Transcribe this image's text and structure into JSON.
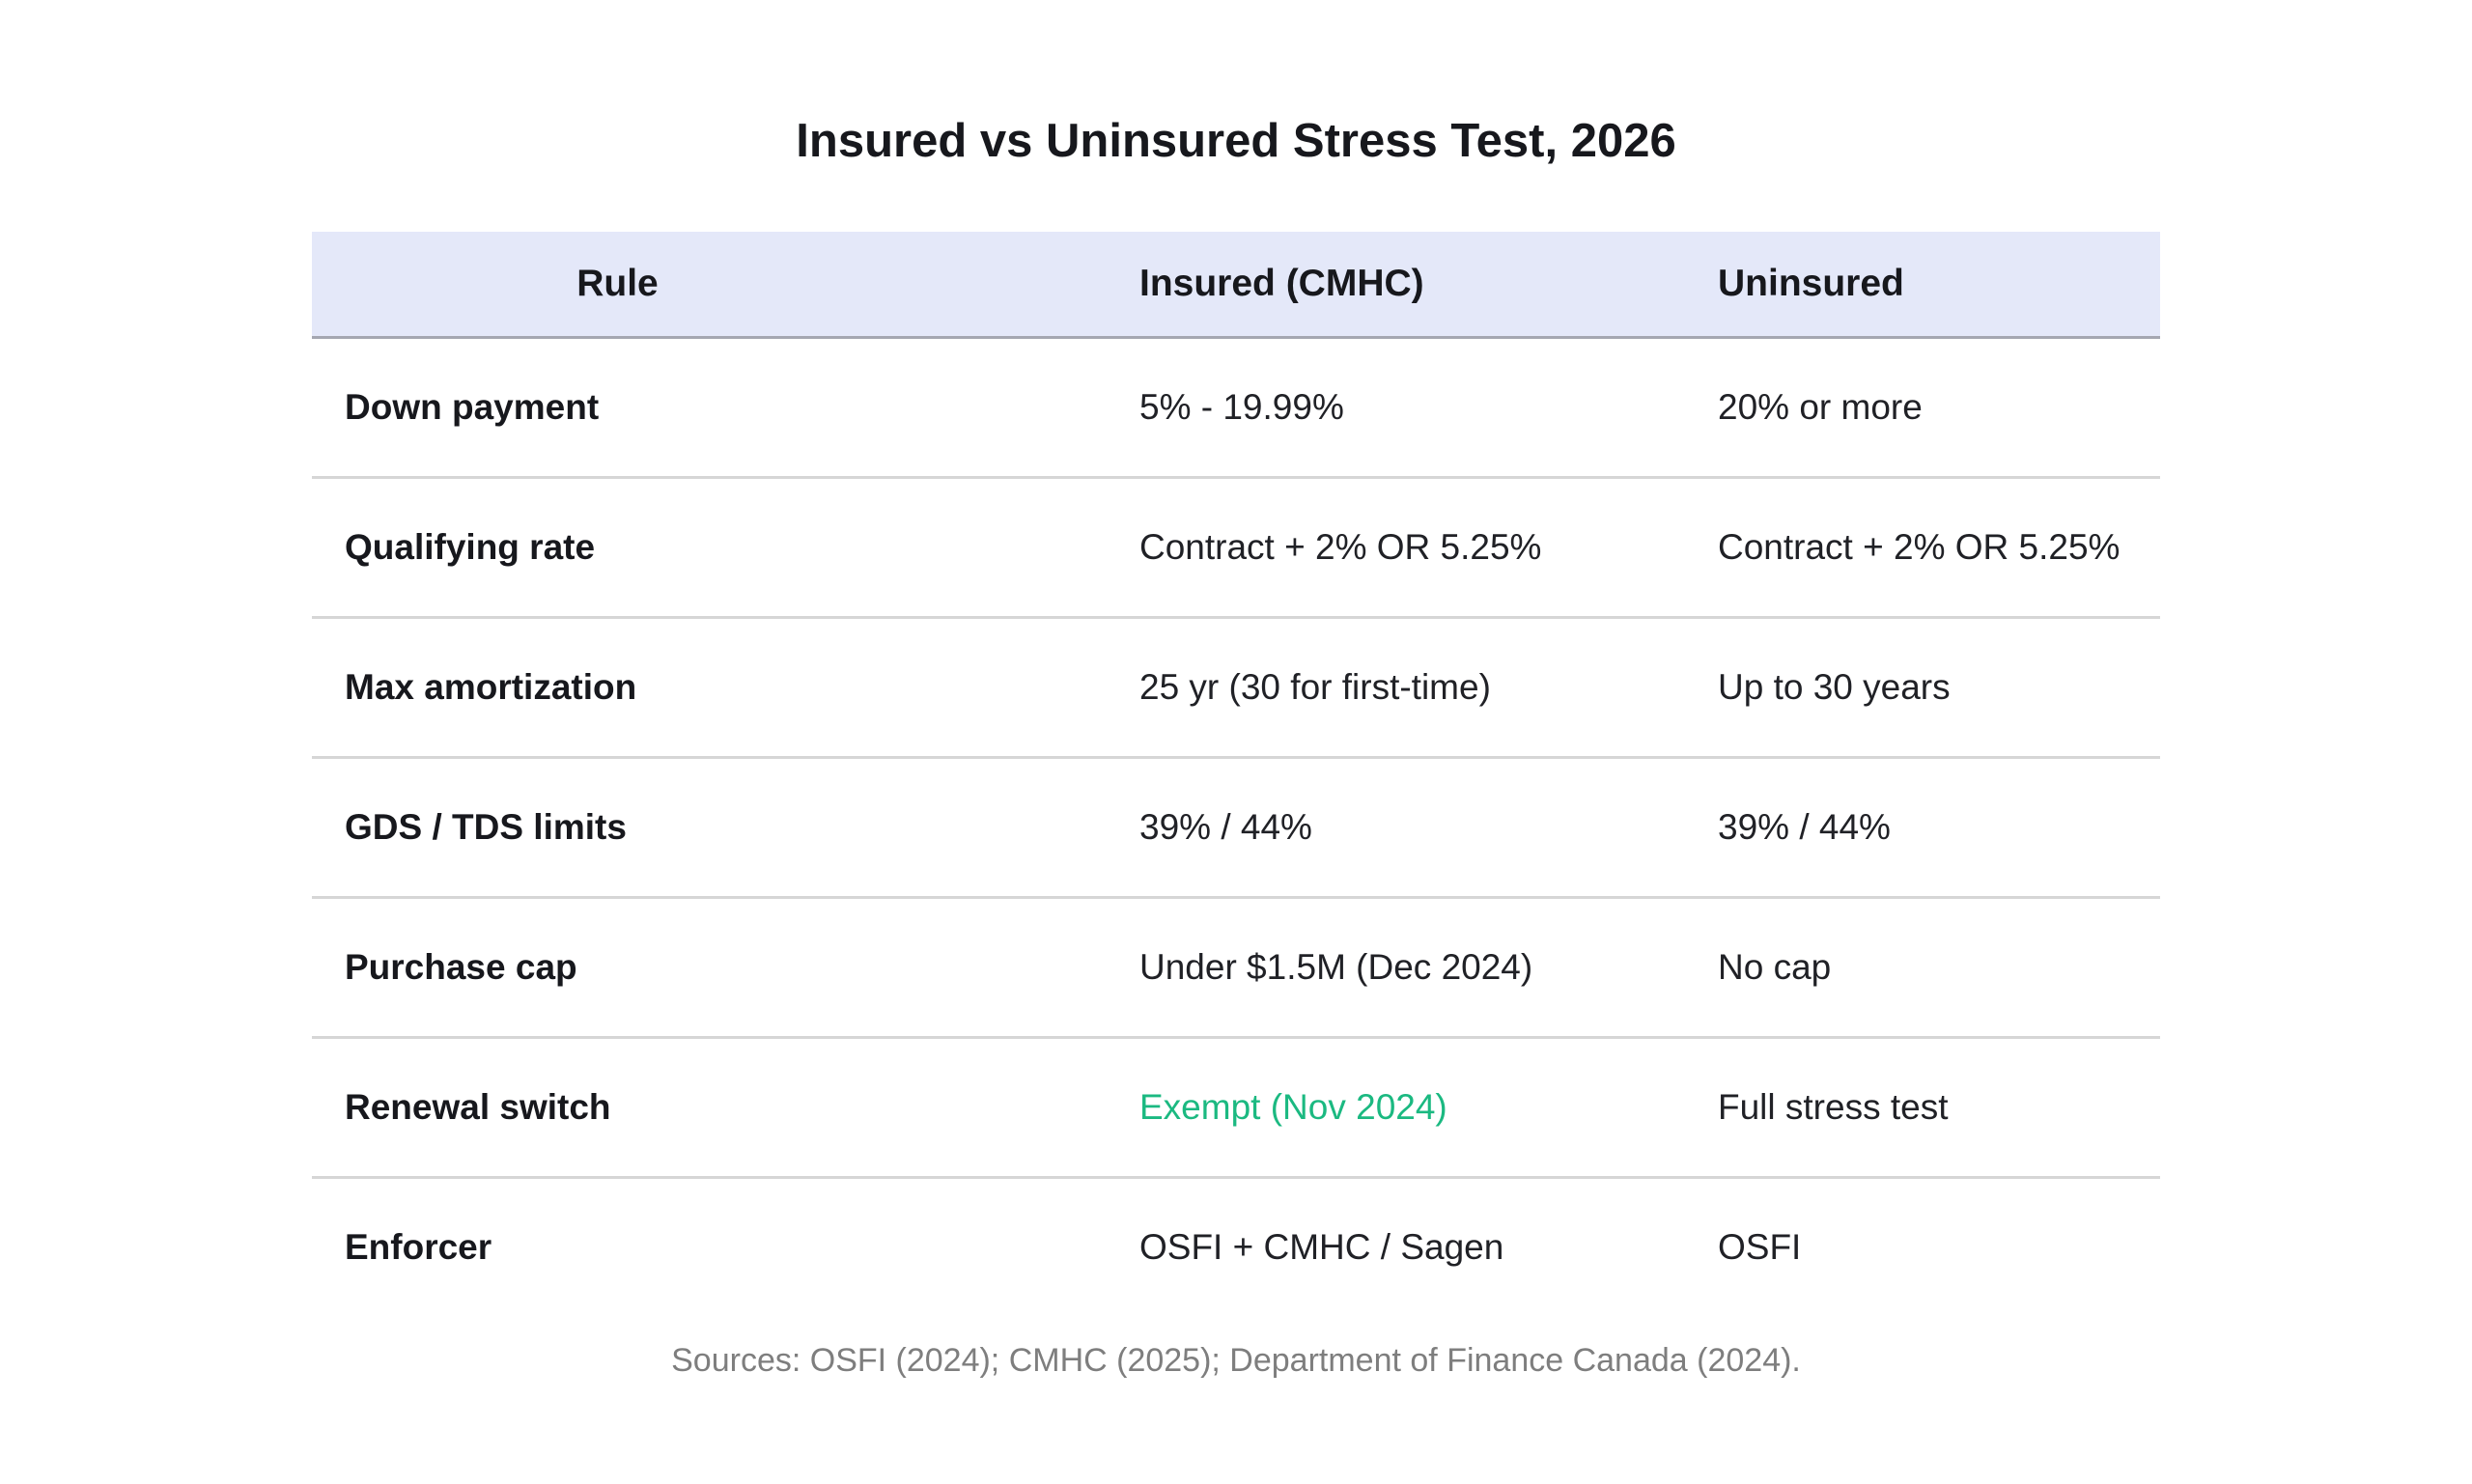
{
  "chart_data": {
    "type": "table",
    "title": "Insured vs Uninsured Stress Test, 2026",
    "columns": [
      "Rule",
      "Insured (CMHC)",
      "Uninsured"
    ],
    "rows": [
      [
        "Down payment",
        "5% - 19.99%",
        "20% or more"
      ],
      [
        "Qualifying rate",
        "Contract + 2% OR 5.25%",
        "Contract + 2% OR 5.25%"
      ],
      [
        "Max amortization",
        "25 yr (30 for first-time)",
        "Up to 30 years"
      ],
      [
        "GDS / TDS limits",
        "39% / 44%",
        "39% / 44%"
      ],
      [
        "Purchase cap",
        "Under $1.5M (Dec 2024)",
        "No cap"
      ],
      [
        "Renewal switch",
        "Exempt (Nov 2024)",
        "Full stress test"
      ],
      [
        "Enforcer",
        "OSFI + CMHC / Sagen",
        "OSFI"
      ]
    ],
    "highlight_cell": {
      "row_index": 5,
      "col_index": 1,
      "color": "#1bb981"
    },
    "footnote": "Sources: OSFI (2024); CMHC (2025); Department of Finance Canada (2024).",
    "layout_hints": {
      "header_align": [
        "center",
        "left",
        "left"
      ],
      "body_first_col_bold": true,
      "grid": "horizontal-rules-only"
    }
  },
  "colors": {
    "header_bg": "#e4e8f9",
    "header_border": "#a5a7b1",
    "row_border": "#d6d6d6",
    "body_text": "#202126",
    "heading_text": "#17181d",
    "highlight_green": "#1bb981",
    "footnote_text": "#7e7e7e",
    "page_bg": "#ffffff"
  }
}
